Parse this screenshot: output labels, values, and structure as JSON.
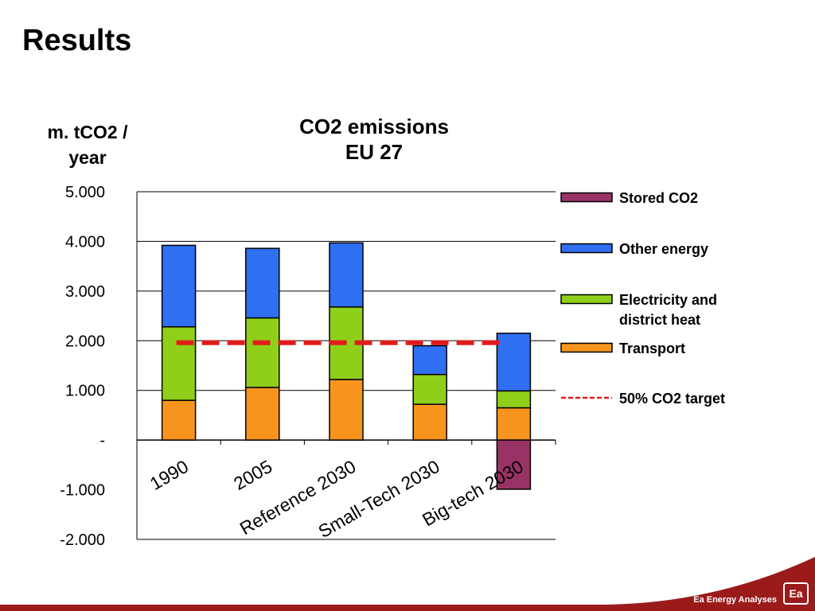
{
  "slide": {
    "title": "Results",
    "footer_text": "Ea Energy Analyses",
    "logo_text": "Ea"
  },
  "colors": {
    "transport": "#f7941d",
    "electricity": "#8fcf1a",
    "other_energy": "#2f6ff2",
    "stored_co2": "#993366",
    "target": "#e21b1b",
    "footer": "#9b1b1b"
  },
  "chart_data": {
    "type": "bar",
    "stacked": true,
    "title_lines": [
      "CO2 emissions",
      "EU 27"
    ],
    "ylabel_lines": [
      "m. tCO2 /",
      "year"
    ],
    "xlabel": "",
    "categories": [
      "1990",
      "2005",
      "Reference 2030",
      "Small-Tech 2030",
      "Big-tech 2030"
    ],
    "ylim": [
      -2000,
      5000
    ],
    "yticks": [
      5000,
      4000,
      3000,
      2000,
      1000,
      0,
      -1000,
      -2000
    ],
    "ytick_labels": [
      "5.000",
      "4.000",
      "3.000",
      "2.000",
      "1.000",
      "-",
      "-1.000",
      "-2.000"
    ],
    "series": [
      {
        "name": "Transport",
        "color_key": "transport",
        "values": [
          800,
          1060,
          1220,
          720,
          650
        ]
      },
      {
        "name": "Electricity and district heat",
        "color_key": "electricity",
        "values": [
          1480,
          1400,
          1460,
          600,
          340
        ]
      },
      {
        "name": "Other energy",
        "color_key": "other_energy",
        "values": [
          1640,
          1400,
          1290,
          580,
          1160
        ]
      },
      {
        "name": "Stored CO2",
        "color_key": "stored_co2",
        "values": [
          0,
          0,
          0,
          0,
          -990
        ]
      }
    ],
    "target_line": {
      "name": "50%  CO2 target",
      "value": 1960
    },
    "legend": [
      {
        "label": "Stored CO2",
        "color_key": "stored_co2",
        "kind": "box"
      },
      {
        "label": "Other energy",
        "color_key": "other_energy",
        "kind": "box"
      },
      {
        "label": "Electricity and district heat",
        "lines": [
          "Electricity and",
          "district heat"
        ],
        "color_key": "electricity",
        "kind": "box"
      },
      {
        "label": "Transport",
        "color_key": "transport",
        "kind": "box"
      },
      {
        "label": "50%  CO2 target",
        "color_key": "target",
        "kind": "dash"
      }
    ],
    "legend_position": "right",
    "grid": true
  }
}
